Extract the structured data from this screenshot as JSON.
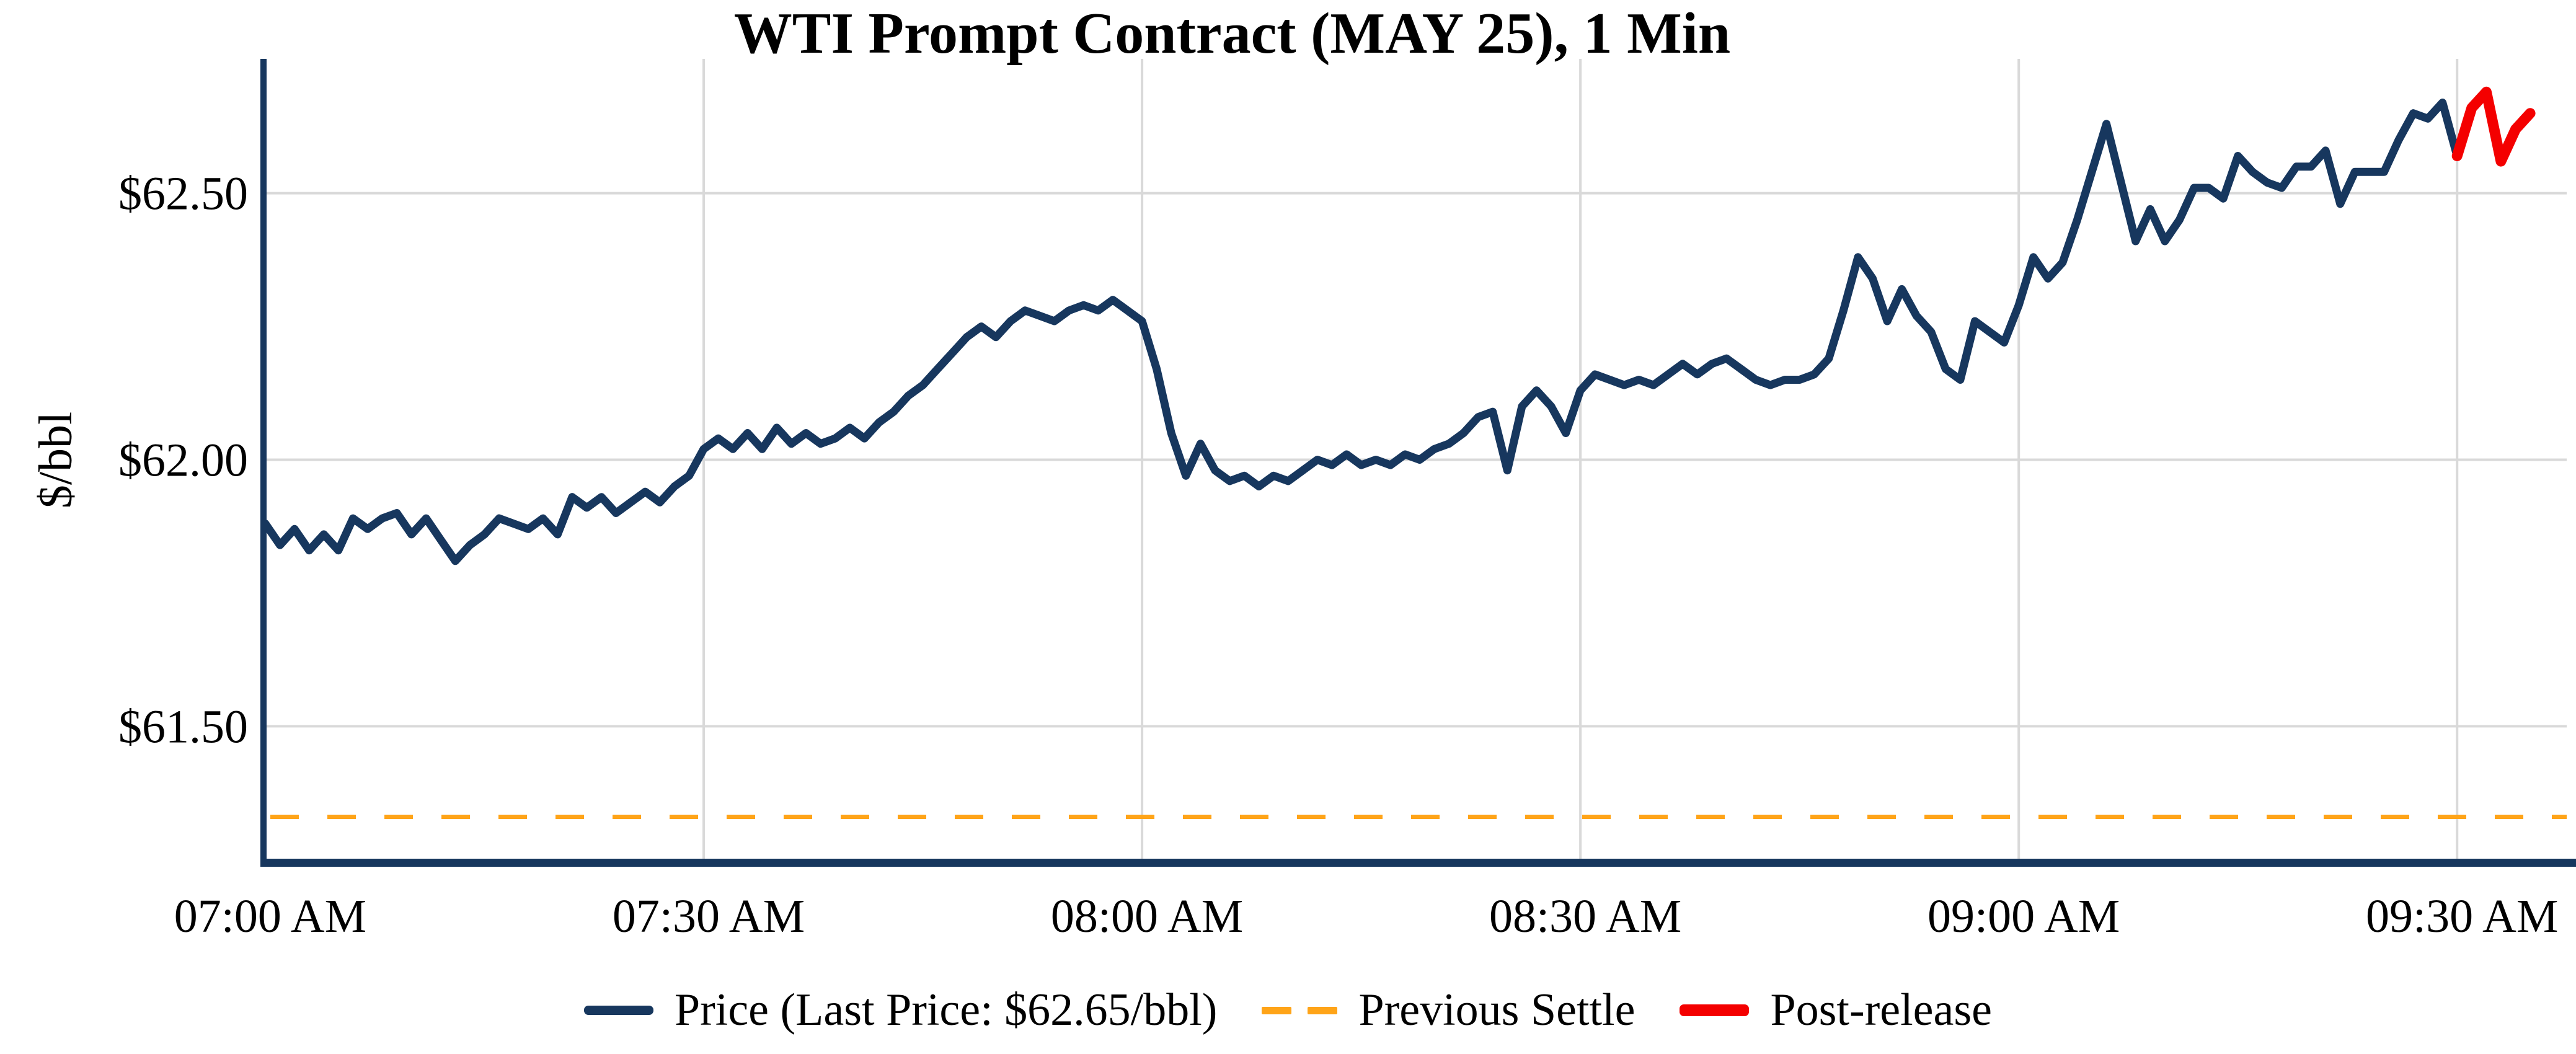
{
  "title": "WTI Prompt Contract (MAY 25), 1 Min",
  "y_axis_title": "$/bbl",
  "colors": {
    "price_line": "#17375e",
    "post_release_line": "#f40000",
    "previous_settle_line": "#ffa418",
    "gridline": "#d9d9d9",
    "axis_spine": "#17375e",
    "text": "#000000",
    "background": "#ffffff"
  },
  "legend": [
    {
      "label": "Price (Last Price: $62.65/bbl)",
      "swatch": "solid-navy-line"
    },
    {
      "label": "Previous Settle",
      "swatch": "dashed-orange-line"
    },
    {
      "label": "Post-release",
      "swatch": "solid-red-line"
    }
  ],
  "chart_data": {
    "type": "line",
    "title": "WTI Prompt Contract (MAY 25), 1 Min",
    "xlabel": "",
    "ylabel": "$/bbl",
    "grid": true,
    "legend_position": "bottom-center",
    "last_price": "$62.65/bbl",
    "previous_settle": 61.33,
    "ylim": [
      61.248,
      62.752
    ],
    "xlim_minutes": [
      0,
      157.5
    ],
    "x_ticks": [
      {
        "label": "07:00 AM",
        "minute": 0
      },
      {
        "label": "07:30 AM",
        "minute": 30
      },
      {
        "label": "08:00 AM",
        "minute": 60
      },
      {
        "label": "08:30 AM",
        "minute": 90
      },
      {
        "label": "09:00 AM",
        "minute": 120
      },
      {
        "label": "09:30 AM",
        "minute": 150
      }
    ],
    "y_ticks": [
      {
        "label": "$62.50",
        "value": 62.5
      },
      {
        "label": "$62.00",
        "value": 62.0
      },
      {
        "label": "$61.50",
        "value": 61.5
      }
    ],
    "series": [
      {
        "name": "Price",
        "style": "solid",
        "color": "#17375e",
        "start_time": "07:00 AM",
        "interval_minutes": 1,
        "x_start_minute": 0,
        "values": [
          61.88,
          61.84,
          61.87,
          61.83,
          61.86,
          61.83,
          61.89,
          61.87,
          61.89,
          61.9,
          61.86,
          61.89,
          61.85,
          61.81,
          61.84,
          61.86,
          61.89,
          61.88,
          61.87,
          61.89,
          61.86,
          61.93,
          61.91,
          61.93,
          61.9,
          61.92,
          61.94,
          61.92,
          61.95,
          61.97,
          62.02,
          62.04,
          62.02,
          62.05,
          62.02,
          62.06,
          62.03,
          62.05,
          62.03,
          62.04,
          62.06,
          62.04,
          62.07,
          62.09,
          62.12,
          62.14,
          62.17,
          62.2,
          62.23,
          62.25,
          62.23,
          62.26,
          62.28,
          62.27,
          62.26,
          62.28,
          62.29,
          62.28,
          62.3,
          62.28,
          62.26,
          62.17,
          62.05,
          61.97,
          62.03,
          61.98,
          61.96,
          61.97,
          61.95,
          61.97,
          61.96,
          61.98,
          62.0,
          61.99,
          62.01,
          61.99,
          62.0,
          61.99,
          62.01,
          62.0,
          62.02,
          62.03,
          62.05,
          62.08,
          62.09,
          61.98,
          62.1,
          62.13,
          62.1,
          62.05,
          62.13,
          62.16,
          62.15,
          62.14,
          62.15,
          62.14,
          62.16,
          62.18,
          62.16,
          62.18,
          62.19,
          62.17,
          62.15,
          62.14,
          62.15,
          62.15,
          62.16,
          62.19,
          62.28,
          62.38,
          62.34,
          62.26,
          62.32,
          62.27,
          62.24,
          62.17,
          62.15,
          62.26,
          62.24,
          62.22,
          62.29,
          62.38,
          62.34,
          62.37,
          62.45,
          62.54,
          62.63,
          62.52,
          62.41,
          62.47,
          62.41,
          62.45,
          62.51,
          62.51,
          62.49,
          62.57,
          62.54,
          62.52,
          62.51,
          62.55,
          62.55,
          62.58,
          62.48,
          62.54,
          62.54,
          62.54,
          62.6,
          62.65,
          62.64,
          62.67,
          62.57
        ]
      },
      {
        "name": "Post-release",
        "style": "solid",
        "color": "#f40000",
        "start_time": "09:30 AM",
        "interval_minutes": 1,
        "x_start_minute": 150,
        "values": [
          62.57,
          62.66,
          62.69,
          62.56,
          62.62,
          62.65
        ]
      },
      {
        "name": "Previous Settle",
        "style": "dashed",
        "color": "#ffa418",
        "constant_value": 61.33
      }
    ]
  }
}
